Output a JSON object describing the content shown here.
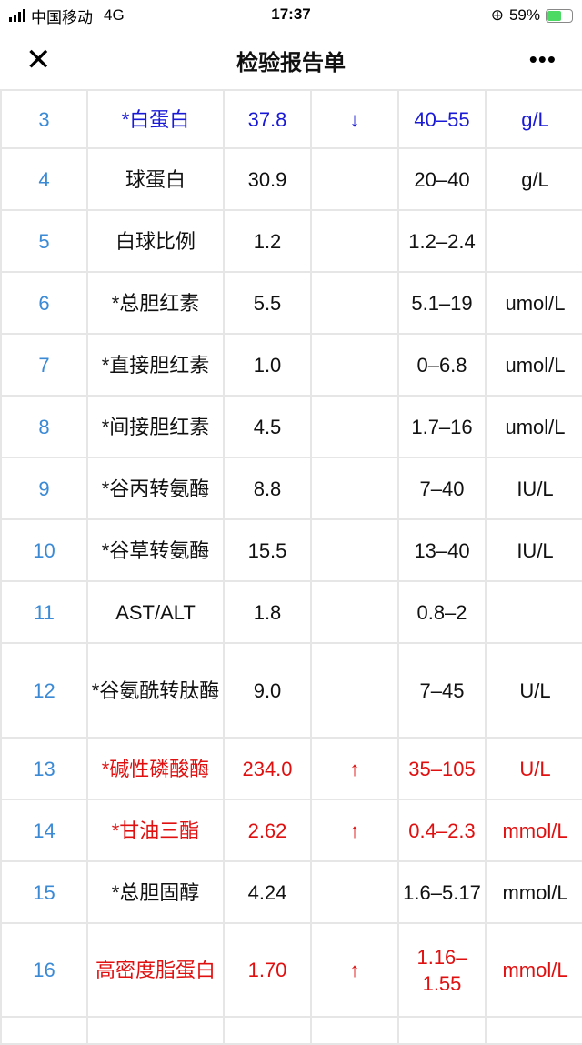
{
  "status_bar": {
    "carrier": "中国移动",
    "network": "4G",
    "time": "17:37",
    "battery": "59%",
    "battery_level": 0.59
  },
  "nav": {
    "title": "检验报告单",
    "close_icon": "close-icon",
    "more_icon": "more-icon"
  },
  "colors": {
    "low": "#1a1ad6",
    "high": "#e01010",
    "index": "#3a8ad6"
  },
  "rows": [
    {
      "no": "3",
      "name": "*白蛋白",
      "value": "37.8",
      "flag": "↓",
      "range": "40–55",
      "unit": "g/L",
      "status": "blue"
    },
    {
      "no": "4",
      "name": "球蛋白",
      "value": "30.9",
      "flag": "",
      "range": "20–40",
      "unit": "g/L",
      "status": ""
    },
    {
      "no": "5",
      "name": "白球比例",
      "value": "1.2",
      "flag": "",
      "range": "1.2–2.4",
      "unit": "",
      "status": ""
    },
    {
      "no": "6",
      "name": "*总胆红素",
      "value": "5.5",
      "flag": "",
      "range": "5.1–19",
      "unit": "umol/L",
      "status": ""
    },
    {
      "no": "7",
      "name": "*直接胆红素",
      "value": "1.0",
      "flag": "",
      "range": "0–6.8",
      "unit": "umol/L",
      "status": ""
    },
    {
      "no": "8",
      "name": "*间接胆红素",
      "value": "4.5",
      "flag": "",
      "range": "1.7–16",
      "unit": "umol/L",
      "status": ""
    },
    {
      "no": "9",
      "name": "*谷丙转氨酶",
      "value": "8.8",
      "flag": "",
      "range": "7–40",
      "unit": "IU/L",
      "status": ""
    },
    {
      "no": "10",
      "name": "*谷草转氨酶",
      "value": "15.5",
      "flag": "",
      "range": "13–40",
      "unit": "IU/L",
      "status": ""
    },
    {
      "no": "11",
      "name": "AST/ALT",
      "value": "1.8",
      "flag": "",
      "range": "0.8–2",
      "unit": "",
      "status": ""
    },
    {
      "no": "12",
      "name": "*谷氨酰转肽酶",
      "value": "9.0",
      "flag": "",
      "range": "7–45",
      "unit": "U/L",
      "status": ""
    },
    {
      "no": "13",
      "name": "*碱性磷酸酶",
      "value": "234.0",
      "flag": "↑",
      "range": "35–105",
      "unit": "U/L",
      "status": "red"
    },
    {
      "no": "14",
      "name": "*甘油三酯",
      "value": "2.62",
      "flag": "↑",
      "range": "0.4–2.3",
      "unit": "mmol/L",
      "status": "red"
    },
    {
      "no": "15",
      "name": "*总胆固醇",
      "value": "4.24",
      "flag": "",
      "range": "1.6–5.17",
      "unit": "mmol/L",
      "status": ""
    },
    {
      "no": "16",
      "name": "高密度脂蛋白",
      "value": "1.70",
      "flag": "↑",
      "range": "1.16–1.55",
      "unit": "mmol/L",
      "status": "red"
    }
  ]
}
